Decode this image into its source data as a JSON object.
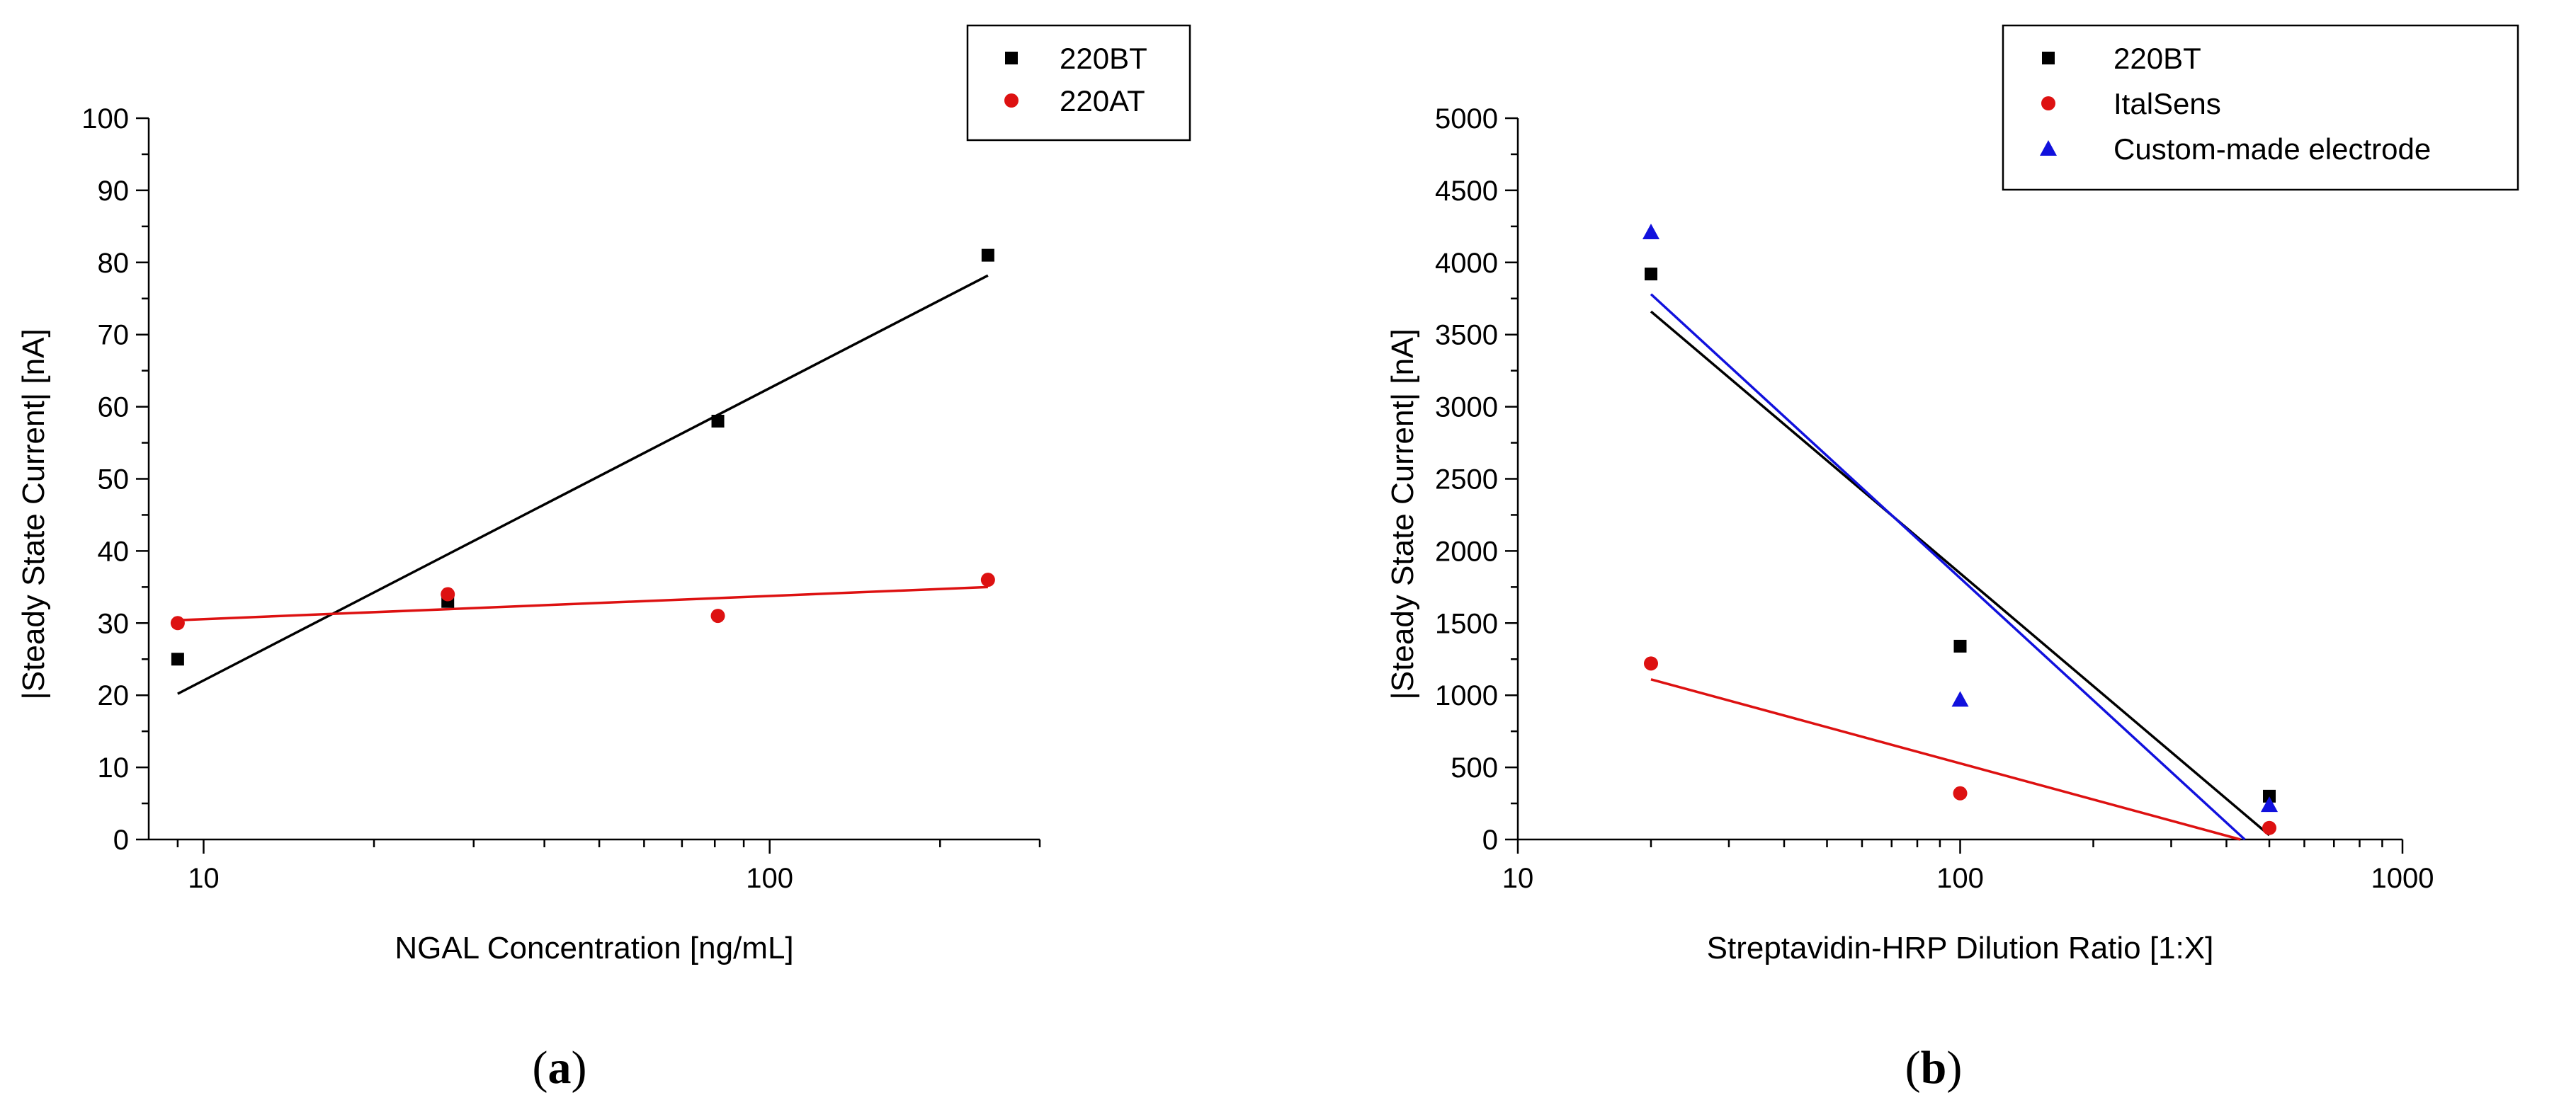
{
  "figure_labels": {
    "a_open": "(",
    "a_letter": "a",
    "a_close": ")",
    "b_open": "(",
    "b_letter": "b",
    "b_close": ")"
  },
  "chart_data": [
    {
      "id": "a",
      "type": "scatter",
      "title": "",
      "xlabel": "NGAL Concentration [ng/mL]",
      "ylabel": "|Steady State Current| [nA]",
      "xscale": "log",
      "xlim": [
        8,
        300
      ],
      "ylim": [
        0,
        100
      ],
      "xticks": [
        10,
        100
      ],
      "xtick_labels": [
        "10",
        "100"
      ],
      "yticks": [
        0,
        10,
        20,
        30,
        40,
        50,
        60,
        70,
        80,
        90,
        100
      ],
      "ytick_labels": [
        "0",
        "10",
        "20",
        "30",
        "40",
        "50",
        "60",
        "70",
        "80",
        "90",
        "100"
      ],
      "grid": false,
      "legend_position": "top-right",
      "series": [
        {
          "name": "220BT",
          "color": "#000000",
          "marker": "square",
          "x": [
            9,
            27,
            81,
            243
          ],
          "y": [
            25,
            33,
            58,
            81
          ],
          "fit": {
            "x": [
              9,
              243
            ],
            "y": [
              20.2,
              78.2
            ]
          }
        },
        {
          "name": "220AT",
          "color": "#dd1111",
          "marker": "circle",
          "x": [
            9,
            27,
            81,
            243
          ],
          "y": [
            30,
            34,
            31,
            36
          ],
          "fit": {
            "x": [
              9,
              243
            ],
            "y": [
              30.4,
              35.0
            ]
          }
        }
      ]
    },
    {
      "id": "b",
      "type": "scatter",
      "title": "",
      "xlabel": "Streptavidin-HRP Dilution Ratio [1:X]",
      "ylabel": "|Steady State Current| [nA]",
      "xscale": "log",
      "xlim": [
        10,
        1000
      ],
      "ylim": [
        0,
        5000
      ],
      "xticks": [
        10,
        100,
        1000
      ],
      "xtick_labels": [
        "10",
        "100",
        "1000"
      ],
      "yticks": [
        0,
        500,
        1000,
        1500,
        2000,
        2500,
        3000,
        3500,
        4000,
        4500,
        5000
      ],
      "ytick_labels": [
        "0",
        "500",
        "1000",
        "1500",
        "2000",
        "2500",
        "3000",
        "3500",
        "4000",
        "4500",
        "5000"
      ],
      "grid": false,
      "legend_position": "top-right",
      "series": [
        {
          "name": "220BT",
          "color": "#000000",
          "marker": "square",
          "x": [
            20,
            100,
            500
          ],
          "y": [
            3920,
            1340,
            300
          ],
          "fit": {
            "x": [
              20,
              500
            ],
            "y": [
              3660,
              30
            ]
          }
        },
        {
          "name": "ItalSens",
          "color": "#dd1111",
          "marker": "circle",
          "x": [
            20,
            100,
            500
          ],
          "y": [
            1220,
            320,
            80
          ],
          "fit": {
            "x": [
              20,
              430
            ],
            "y": [
              1110,
              0
            ]
          }
        },
        {
          "name": "Custom-made electrode",
          "color": "#1111dd",
          "marker": "triangle",
          "x": [
            20,
            100,
            500
          ],
          "y": [
            4210,
            970,
            240
          ],
          "fit": {
            "x": [
              20,
              440
            ],
            "y": [
              3780,
              0
            ]
          }
        }
      ]
    }
  ]
}
